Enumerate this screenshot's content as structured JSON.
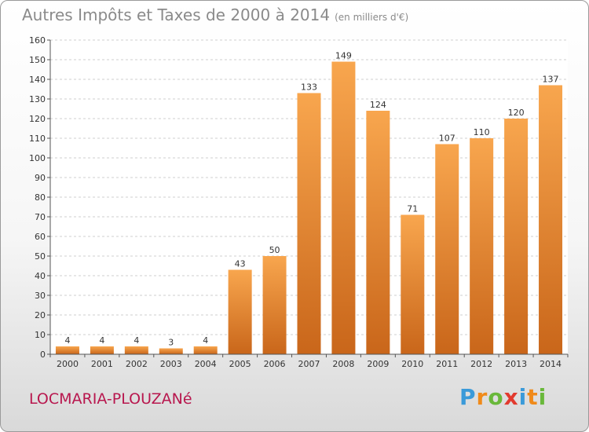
{
  "title": "Autres Impôts et Taxes de 2000 à 2014",
  "unit": "(en milliers d'€)",
  "commune": "LOCMARIA-PLOUZANé",
  "logo": {
    "letters": [
      "P",
      "r",
      "o",
      "x",
      "i",
      "t",
      "i"
    ],
    "colors": [
      "#3a9ad9",
      "#f08a1a",
      "#69b83a",
      "#e23a2e",
      "#3a9ad9",
      "#f08a1a",
      "#69b83a"
    ]
  },
  "chart_data": {
    "type": "bar",
    "title": "Autres Impôts et Taxes de 2000 à 2014",
    "subtitle": "(en milliers d'€)",
    "xlabel": "",
    "ylabel": "",
    "categories": [
      "2000",
      "2001",
      "2002",
      "2003",
      "2004",
      "2005",
      "2006",
      "2007",
      "2008",
      "2009",
      "2010",
      "2011",
      "2012",
      "2013",
      "2014"
    ],
    "values": [
      4,
      4,
      4,
      3,
      4,
      43,
      50,
      133,
      149,
      124,
      71,
      107,
      110,
      120,
      137
    ],
    "ylim": [
      0,
      160
    ],
    "yticks": [
      "0",
      "10",
      "20",
      "30",
      "40",
      "50",
      "60",
      "70",
      "80",
      "90",
      "100",
      "110",
      "120",
      "130",
      "140",
      "150",
      "160"
    ],
    "grid": true,
    "bar_color": "#f59a3e",
    "bar_color_dark": "#c9661a"
  }
}
